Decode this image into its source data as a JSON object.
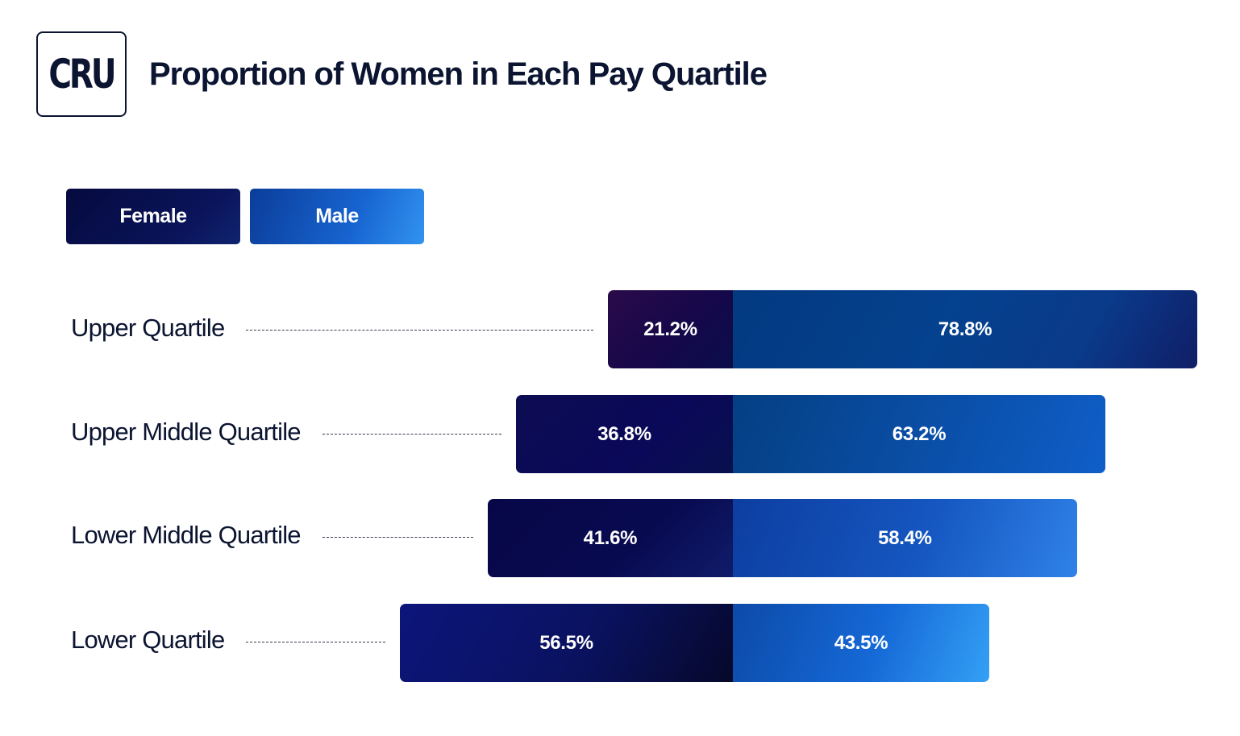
{
  "logo": {
    "text": "CRU"
  },
  "chart_data": {
    "type": "bar",
    "orientation": "horizontal",
    "stacked": true,
    "title": "Proportion of Women in Each Pay Quartile",
    "legend": [
      "Female",
      "Male"
    ],
    "legend_placement": "top-left",
    "categories": [
      "Upper Quartile",
      "Upper Middle Quartile",
      "Lower Middle Quartile",
      "Lower Quartile"
    ],
    "series": [
      {
        "name": "Female",
        "values": [
          21.2,
          36.8,
          41.6,
          56.5
        ],
        "labels": [
          "21.2%",
          "36.8%",
          "41.6%",
          "56.5%"
        ]
      },
      {
        "name": "Male",
        "values": [
          78.8,
          63.2,
          58.4,
          43.5
        ],
        "labels": [
          "78.8%",
          "63.2%",
          "58.4%",
          "43.5%"
        ]
      }
    ],
    "units": "%",
    "colors": {
      "female": "#0a0858",
      "male": "#1764d0",
      "text": "#0b1430"
    }
  }
}
